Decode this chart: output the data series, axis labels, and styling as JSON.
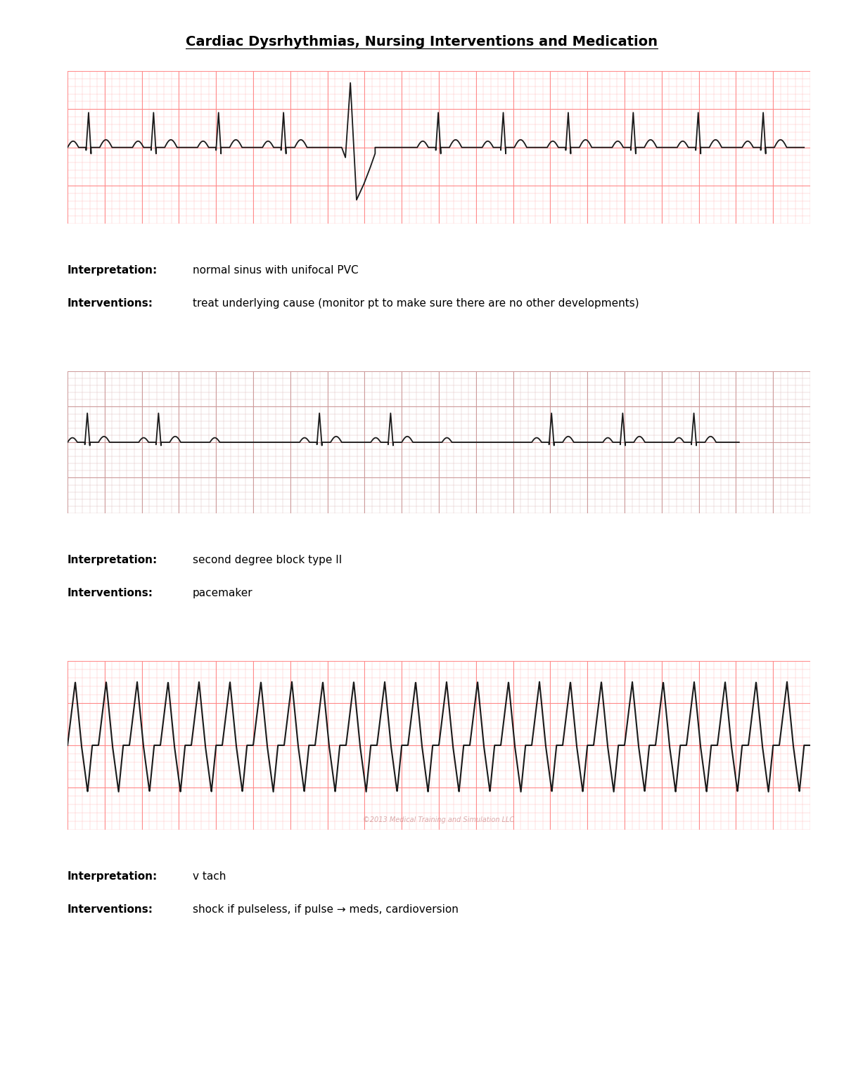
{
  "title": "Cardiac Dysrhythmias, Nursing Interventions and Medication",
  "bg_color": "#ffffff",
  "ecg1_bg": "#ffcccc",
  "ecg2_bg": "#f0e0e0",
  "ecg3_bg": "#ffcccc",
  "grid_major_color": "#ff8888",
  "grid_minor_color": "#ffbbbb",
  "ecg2_major_color": "#cc9999",
  "ecg2_minor_color": "#ddbbb b",
  "ecg_line_color": "#1a1a1a",
  "interp1": "normal sinus with unifocal PVC",
  "interv1": "treat underlying cause (monitor pt to make sure there are no other developments)",
  "interp2": "second degree block type II",
  "interv2": "pacemaker",
  "interp3": "v tach",
  "interv3": "shock if pulseless, if pulse → meds, cardioversion",
  "label_bold": "Interpretation:",
  "label_bold2": "Interventions:",
  "title_fontsize": 14,
  "label_fontsize": 11,
  "text_fontsize": 11,
  "watermark": "©2013 Medical Training and Simulation LLC"
}
